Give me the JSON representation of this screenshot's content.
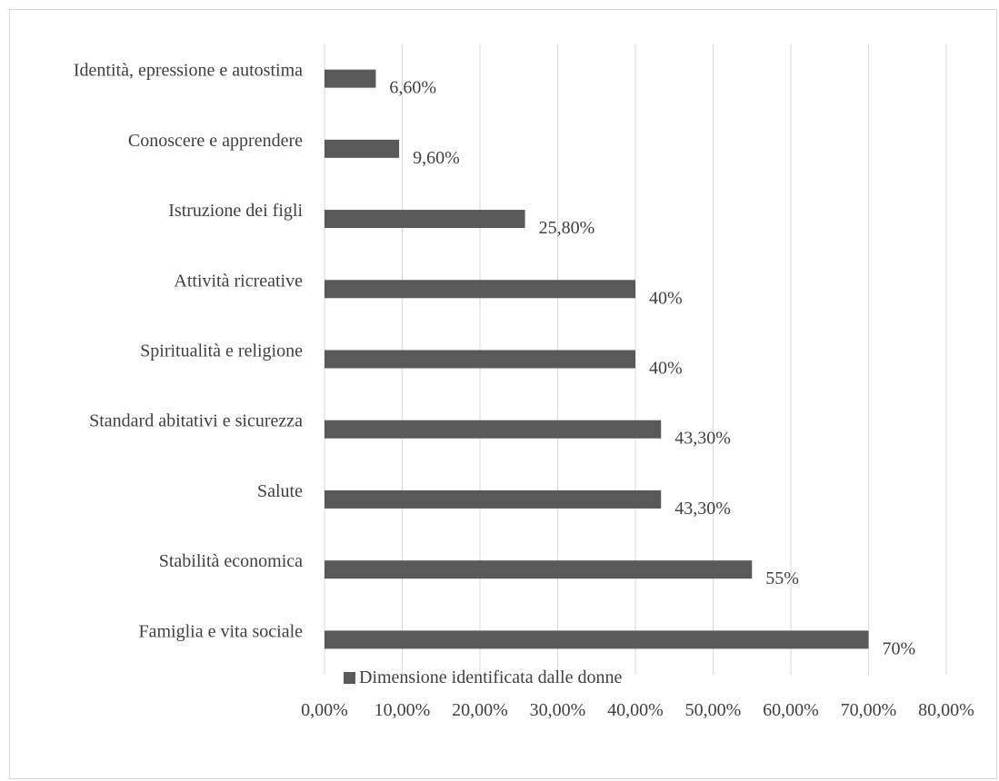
{
  "chart_data": {
    "type": "bar",
    "orientation": "horizontal",
    "categories": [
      "Identità, epressione e autostima",
      "Conoscere e apprendere",
      "Istruzione dei figli",
      "Attività ricreative",
      "Spiritualità e religione",
      "Standard abitativi e sicurezza",
      "Salute",
      "Stabilità economica",
      "Famiglia e vita sociale"
    ],
    "series": [
      {
        "name": "Dimensione identificata dalle donne",
        "values": [
          6.6,
          9.6,
          25.8,
          40,
          40,
          43.3,
          43.3,
          55,
          70
        ],
        "labels": [
          "6,60%",
          "9,60%",
          "25,80%",
          "40%",
          "40%",
          "43,30%",
          "43,30%",
          "55%",
          "70%"
        ],
        "color": "#595959"
      }
    ],
    "xlim": [
      0,
      80
    ],
    "xticks": [
      "0,00%",
      "10,00%",
      "20,00%",
      "30,00%",
      "40,00%",
      "50,00%",
      "60,00%",
      "70,00%",
      "80,00%"
    ],
    "xlabel": "",
    "ylabel": "",
    "title": "",
    "grid": "vertical",
    "gridColor": "#d9d9d9",
    "legend_position": "bottom"
  }
}
